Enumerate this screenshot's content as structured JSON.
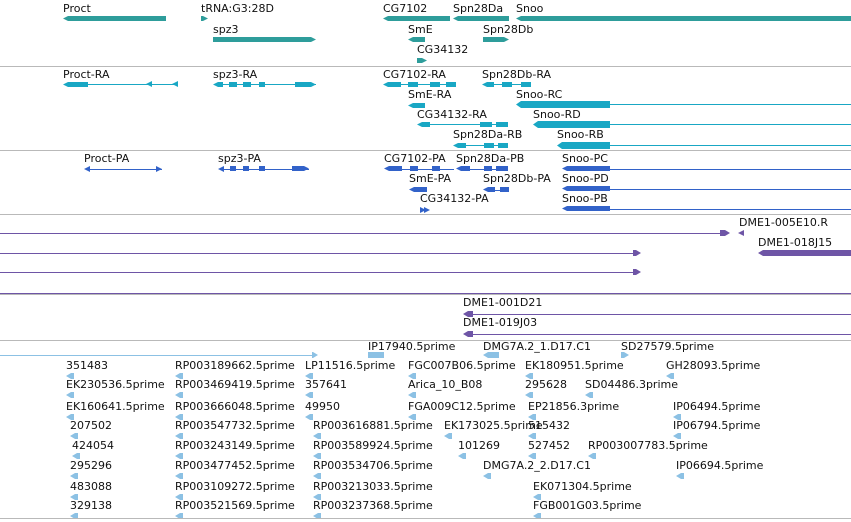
{
  "colors": {
    "gene": "#2e9d9b",
    "transcript_rna": "#19a7c4",
    "protein": "#3262c9",
    "clone": "#6e55a6",
    "est": "#8cc1e4",
    "separator": "#b9b9b9",
    "text": "#111111"
  },
  "tracks": {
    "genes": {
      "labels": [
        "Proct",
        "tRNA:G3:28D",
        "CG7102",
        "Spn28Da",
        "Snoo",
        "spz3",
        "SmE",
        "Spn28Db",
        "CG34132"
      ]
    },
    "transcripts": {
      "labels": [
        "Proct-RA",
        "spz3-RA",
        "CG7102-RA",
        "Spn28Db-RA",
        "SmE-RA",
        "Snoo-RC",
        "CG34132-RA",
        "Snoo-RD",
        "Spn28Da-RB",
        "Snoo-RB"
      ]
    },
    "proteins": {
      "labels": [
        "Proct-PA",
        "spz3-PA",
        "CG7102-PA",
        "Spn28Da-PB",
        "Snoo-PC",
        "SmE-PA",
        "Spn28Db-PA",
        "Snoo-PD",
        "CG34132-PA",
        "Snoo-PB"
      ]
    },
    "clones_a": {
      "labels": [
        "DME1-005E10.R",
        "DME1-018J15"
      ]
    },
    "clones_b": {
      "labels": [
        "DME1-001D21",
        "DME1-019J03"
      ]
    },
    "ests": {
      "labels": [
        "IP17940.5prime",
        "DMG7A.2_1.D17.C1",
        "SD27579.5prime",
        "351483",
        "RP003189662.5prime",
        "LP11516.5prime",
        "FGC007B06.5prime",
        "EK180951.5prime",
        "GH28093.5prime",
        "EK230536.5prime",
        "RP003469419.5prime",
        "357641",
        "Arica_10_B08",
        "295628",
        "SD04486.3prime",
        "EK160641.5prime",
        "RP003666048.5prime",
        "49950",
        "FGA009C12.5prime",
        "EP21856.3prime",
        "IP06494.5prime",
        "207502",
        "RP003547732.5prime",
        "RP003616881.5prime",
        "EK173025.5prime",
        "515432",
        "IP06794.5prime",
        "424054",
        "RP003243149.5prime",
        "RP003589924.5prime",
        "101269",
        "527452",
        "RP003007783.5prime",
        "295296",
        "RP003477452.5prime",
        "RP003534706.5prime",
        "DMG7A.2_2.D17.C1",
        "IP06694.5prime",
        "483088",
        "RP003109272.5prime",
        "RP003213033.5prime",
        "EK071304.5prime",
        "329138",
        "RP003521569.5prime",
        "RP003237368.5prime",
        "FGB001G03.5prime"
      ]
    }
  }
}
